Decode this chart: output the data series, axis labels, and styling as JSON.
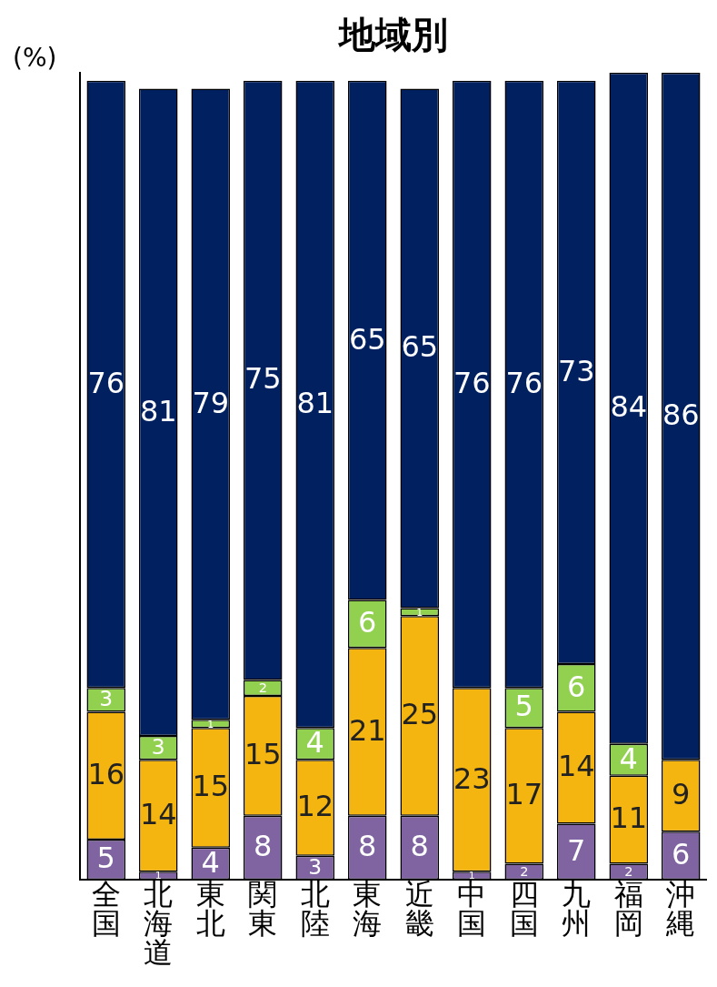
{
  "chart_data": {
    "type": "bar",
    "title": "地域別",
    "ylabel": "(%)",
    "stacked": true,
    "data_labels": true,
    "tick_labels": "x",
    "grid": false,
    "legend": false,
    "ylim": [
      0,
      101
    ],
    "categories": [
      "全国",
      "北海道",
      "東北",
      "関東",
      "北陸",
      "東海",
      "近畿",
      "中国",
      "四国",
      "九州",
      "福岡",
      "沖縄"
    ],
    "series": [
      {
        "color": "#8064a2",
        "values": [
          5,
          1,
          4,
          8,
          3,
          8,
          8,
          1,
          2,
          7,
          2,
          6
        ]
      },
      {
        "color": "#f5b511",
        "values": [
          16,
          14,
          15,
          15,
          12,
          21,
          25,
          23,
          17,
          14,
          11,
          9
        ]
      },
      {
        "color": "#92d050",
        "values": [
          3,
          3,
          1,
          2,
          4,
          6,
          1,
          null,
          5,
          6,
          4,
          null
        ]
      },
      {
        "color": "#002060",
        "values": [
          76,
          81,
          79,
          75,
          81,
          65,
          65,
          76,
          76,
          73,
          84,
          86
        ]
      }
    ]
  }
}
